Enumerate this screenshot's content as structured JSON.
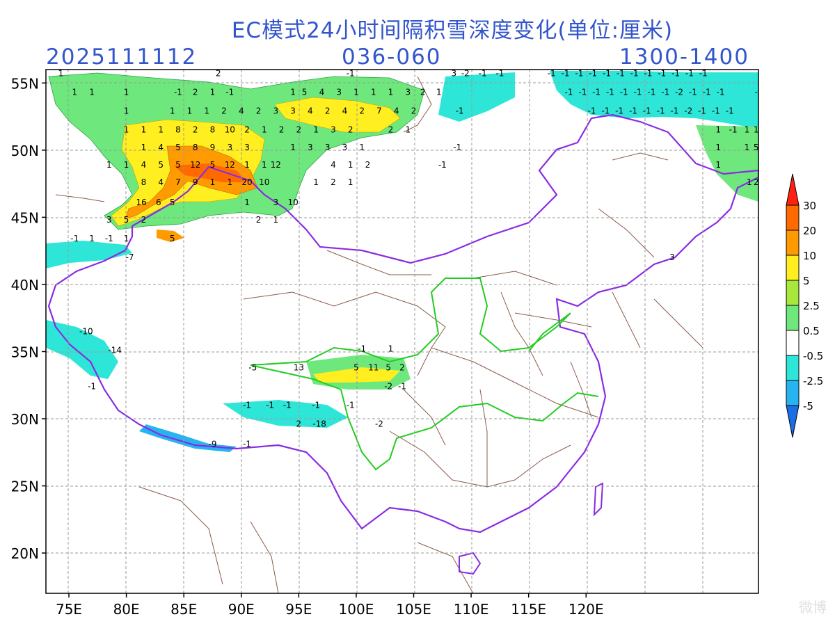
{
  "title": "EC模式24小时间隔积雪深度变化(单位:厘米)",
  "init_time": "2025111112",
  "forecast_range": "036-060",
  "time_window": "1300-1400",
  "axes": {
    "x_ticks": [
      "75E",
      "80E",
      "85E",
      "90E",
      "95E",
      "100E",
      "105E",
      "110E",
      "115E",
      "120E"
    ],
    "y_ticks": [
      "55N",
      "50N",
      "45N",
      "40N",
      "35N",
      "30N",
      "25N",
      "20N"
    ],
    "lon_range": [
      73,
      135
    ],
    "lat_range": [
      17,
      56
    ]
  },
  "colorbar": {
    "labels": [
      "30",
      "20",
      "10",
      "5",
      "2.5",
      "0.5",
      "-0.5",
      "-2.5",
      "-5"
    ],
    "colors": [
      "#ff2010",
      "#ff6a00",
      "#ff9a00",
      "#ffee20",
      "#a8e83c",
      "#6ee87c",
      "#ffffff",
      "#2ee6d8",
      "#26b4f0",
      "#1a6ee6"
    ]
  },
  "watermark": "微博",
  "snow_labels": [
    {
      "lon": 74.3,
      "lat": 55.5,
      "v": "1"
    },
    {
      "lon": 75.5,
      "lat": 54.1,
      "v": "1"
    },
    {
      "lon": 77,
      "lat": 54.1,
      "v": "1"
    },
    {
      "lon": 80,
      "lat": 54.1,
      "v": "1"
    },
    {
      "lon": 84.5,
      "lat": 54.1,
      "v": "-1"
    },
    {
      "lon": 86,
      "lat": 54.1,
      "v": "2"
    },
    {
      "lon": 87.5,
      "lat": 54.1,
      "v": "1"
    },
    {
      "lon": 89,
      "lat": 54.1,
      "v": "-1"
    },
    {
      "lon": 88,
      "lat": 55.5,
      "v": "2"
    },
    {
      "lon": 94.5,
      "lat": 54.1,
      "v": "1"
    },
    {
      "lon": 95.5,
      "lat": 54.1,
      "v": "5"
    },
    {
      "lon": 97,
      "lat": 54.1,
      "v": "4"
    },
    {
      "lon": 98.5,
      "lat": 54.1,
      "v": "3"
    },
    {
      "lon": 100,
      "lat": 54.1,
      "v": "1"
    },
    {
      "lon": 101.5,
      "lat": 54.1,
      "v": "1"
    },
    {
      "lon": 103,
      "lat": 54.1,
      "v": "1"
    },
    {
      "lon": 104.5,
      "lat": 54.1,
      "v": "3"
    },
    {
      "lon": 105.8,
      "lat": 54.1,
      "v": "2"
    },
    {
      "lon": 107.2,
      "lat": 54.1,
      "v": "1"
    },
    {
      "lon": 99.5,
      "lat": 55.5,
      "v": "-1"
    },
    {
      "lon": 80,
      "lat": 52.7,
      "v": "1"
    },
    {
      "lon": 84,
      "lat": 52.7,
      "v": "1"
    },
    {
      "lon": 85.5,
      "lat": 52.7,
      "v": "1"
    },
    {
      "lon": 87,
      "lat": 52.7,
      "v": "1"
    },
    {
      "lon": 88.5,
      "lat": 52.7,
      "v": "2"
    },
    {
      "lon": 90,
      "lat": 52.7,
      "v": "4"
    },
    {
      "lon": 91.5,
      "lat": 52.7,
      "v": "2"
    },
    {
      "lon": 93,
      "lat": 52.7,
      "v": "3"
    },
    {
      "lon": 94.5,
      "lat": 52.7,
      "v": "3"
    },
    {
      "lon": 96,
      "lat": 52.7,
      "v": "4"
    },
    {
      "lon": 97.5,
      "lat": 52.7,
      "v": "2"
    },
    {
      "lon": 99,
      "lat": 52.7,
      "v": "4"
    },
    {
      "lon": 100.5,
      "lat": 52.7,
      "v": "2"
    },
    {
      "lon": 102,
      "lat": 52.7,
      "v": "7"
    },
    {
      "lon": 103.5,
      "lat": 52.7,
      "v": "4"
    },
    {
      "lon": 105,
      "lat": 52.7,
      "v": "2"
    },
    {
      "lon": 80,
      "lat": 51.3,
      "v": "1"
    },
    {
      "lon": 81.5,
      "lat": 51.3,
      "v": "1"
    },
    {
      "lon": 83,
      "lat": 51.3,
      "v": "1"
    },
    {
      "lon": 84.5,
      "lat": 51.3,
      "v": "8"
    },
    {
      "lon": 86,
      "lat": 51.3,
      "v": "2"
    },
    {
      "lon": 87.5,
      "lat": 51.3,
      "v": "8"
    },
    {
      "lon": 89,
      "lat": 51.3,
      "v": "10"
    },
    {
      "lon": 90.5,
      "lat": 51.3,
      "v": "2"
    },
    {
      "lon": 92,
      "lat": 51.3,
      "v": "1"
    },
    {
      "lon": 93.5,
      "lat": 51.3,
      "v": "2"
    },
    {
      "lon": 95,
      "lat": 51.3,
      "v": "2"
    },
    {
      "lon": 96.5,
      "lat": 51.3,
      "v": "1"
    },
    {
      "lon": 98,
      "lat": 51.3,
      "v": "3"
    },
    {
      "lon": 99.5,
      "lat": 51.3,
      "v": "2"
    },
    {
      "lon": 103,
      "lat": 51.3,
      "v": "2"
    },
    {
      "lon": 104.5,
      "lat": 51.3,
      "v": "1"
    },
    {
      "lon": 81.5,
      "lat": 50,
      "v": "1"
    },
    {
      "lon": 83,
      "lat": 50,
      "v": "4"
    },
    {
      "lon": 84.5,
      "lat": 50,
      "v": "5"
    },
    {
      "lon": 86,
      "lat": 50,
      "v": "8"
    },
    {
      "lon": 87.5,
      "lat": 50,
      "v": "9"
    },
    {
      "lon": 89,
      "lat": 50,
      "v": "3"
    },
    {
      "lon": 90.5,
      "lat": 50,
      "v": "3"
    },
    {
      "lon": 94.5,
      "lat": 50,
      "v": "1"
    },
    {
      "lon": 96,
      "lat": 50,
      "v": "3"
    },
    {
      "lon": 97.5,
      "lat": 50,
      "v": "3"
    },
    {
      "lon": 99,
      "lat": 50,
      "v": "3"
    },
    {
      "lon": 100.5,
      "lat": 50,
      "v": "1"
    },
    {
      "lon": 78.5,
      "lat": 48.7,
      "v": "1"
    },
    {
      "lon": 80,
      "lat": 48.7,
      "v": "1"
    },
    {
      "lon": 81.5,
      "lat": 48.7,
      "v": "4"
    },
    {
      "lon": 83,
      "lat": 48.7,
      "v": "5"
    },
    {
      "lon": 84.5,
      "lat": 48.7,
      "v": "5"
    },
    {
      "lon": 86,
      "lat": 48.7,
      "v": "12"
    },
    {
      "lon": 87.5,
      "lat": 48.7,
      "v": "5"
    },
    {
      "lon": 89,
      "lat": 48.7,
      "v": "12"
    },
    {
      "lon": 90.5,
      "lat": 48.7,
      "v": "1"
    },
    {
      "lon": 92,
      "lat": 48.7,
      "v": "1"
    },
    {
      "lon": 93,
      "lat": 48.7,
      "v": "12"
    },
    {
      "lon": 98,
      "lat": 48.7,
      "v": "4"
    },
    {
      "lon": 99.5,
      "lat": 48.7,
      "v": "1"
    },
    {
      "lon": 101,
      "lat": 48.7,
      "v": "2"
    },
    {
      "lon": 81.5,
      "lat": 47.4,
      "v": "8"
    },
    {
      "lon": 83,
      "lat": 47.4,
      "v": "4"
    },
    {
      "lon": 84.5,
      "lat": 47.4,
      "v": "7"
    },
    {
      "lon": 86,
      "lat": 47.4,
      "v": "9"
    },
    {
      "lon": 87.5,
      "lat": 47.4,
      "v": "1"
    },
    {
      "lon": 89,
      "lat": 47.4,
      "v": "1"
    },
    {
      "lon": 90.5,
      "lat": 47.4,
      "v": "20"
    },
    {
      "lon": 92,
      "lat": 47.4,
      "v": "10"
    },
    {
      "lon": 96.5,
      "lat": 47.4,
      "v": "1"
    },
    {
      "lon": 98,
      "lat": 47.4,
      "v": "2"
    },
    {
      "lon": 99.5,
      "lat": 47.4,
      "v": "1"
    },
    {
      "lon": 81.3,
      "lat": 45.9,
      "v": "16"
    },
    {
      "lon": 82.8,
      "lat": 45.9,
      "v": "6"
    },
    {
      "lon": 84,
      "lat": 45.9,
      "v": "5"
    },
    {
      "lon": 90.5,
      "lat": 45.9,
      "v": "1"
    },
    {
      "lon": 93,
      "lat": 45.9,
      "v": "3"
    },
    {
      "lon": 94.5,
      "lat": 45.9,
      "v": "10"
    },
    {
      "lon": 78.5,
      "lat": 44.6,
      "v": "3"
    },
    {
      "lon": 80,
      "lat": 44.6,
      "v": "5"
    },
    {
      "lon": 81.5,
      "lat": 44.6,
      "v": "2"
    },
    {
      "lon": 91.5,
      "lat": 44.6,
      "v": "2"
    },
    {
      "lon": 93,
      "lat": 44.6,
      "v": "1"
    },
    {
      "lon": 84,
      "lat": 43.2,
      "v": "5"
    },
    {
      "lon": 75.5,
      "lat": 43.2,
      "v": "-1"
    },
    {
      "lon": 77,
      "lat": 43.2,
      "v": "1"
    },
    {
      "lon": 78.5,
      "lat": 43.2,
      "v": "-1"
    },
    {
      "lon": 80,
      "lat": 43.2,
      "v": "1"
    },
    {
      "lon": 80.3,
      "lat": 41.8,
      "v": "-7"
    },
    {
      "lon": 76.5,
      "lat": 36.3,
      "v": "-10"
    },
    {
      "lon": 79,
      "lat": 34.9,
      "v": "-14"
    },
    {
      "lon": 77,
      "lat": 32.2,
      "v": "-1"
    },
    {
      "lon": 91,
      "lat": 33.6,
      "v": "-5"
    },
    {
      "lon": 95,
      "lat": 33.6,
      "v": "13"
    },
    {
      "lon": 100.5,
      "lat": 35,
      "v": "-1"
    },
    {
      "lon": 103,
      "lat": 35,
      "v": "1"
    },
    {
      "lon": 100,
      "lat": 33.6,
      "v": "5"
    },
    {
      "lon": 101.5,
      "lat": 33.6,
      "v": "11"
    },
    {
      "lon": 102.8,
      "lat": 33.6,
      "v": "5"
    },
    {
      "lon": 104,
      "lat": 33.6,
      "v": "2"
    },
    {
      "lon": 102.8,
      "lat": 32.2,
      "v": "-2"
    },
    {
      "lon": 104,
      "lat": 32.2,
      "v": "-1"
    },
    {
      "lon": 90.5,
      "lat": 30.8,
      "v": "-1"
    },
    {
      "lon": 92.5,
      "lat": 30.8,
      "v": "-1"
    },
    {
      "lon": 94,
      "lat": 30.8,
      "v": "-1"
    },
    {
      "lon": 96.5,
      "lat": 30.8,
      "v": "-1"
    },
    {
      "lon": 95,
      "lat": 29.4,
      "v": "2"
    },
    {
      "lon": 96.8,
      "lat": 29.4,
      "v": "-18"
    },
    {
      "lon": 99.5,
      "lat": 30.8,
      "v": "-1"
    },
    {
      "lon": 102,
      "lat": 29.4,
      "v": "-2"
    },
    {
      "lon": 87.5,
      "lat": 27.9,
      "v": "-9"
    },
    {
      "lon": 90.5,
      "lat": 27.9,
      "v": "-1"
    },
    {
      "lon": 108.5,
      "lat": 55.5,
      "v": "3"
    },
    {
      "lon": 109.5,
      "lat": 55.5,
      "v": "-2"
    },
    {
      "lon": 111,
      "lat": 55.5,
      "v": "-1"
    },
    {
      "lon": 112.5,
      "lat": 55.5,
      "v": "-1"
    },
    {
      "lon": 109,
      "lat": 52.7,
      "v": "-1"
    },
    {
      "lon": 108.8,
      "lat": 50,
      "v": "-1"
    },
    {
      "lon": 107.5,
      "lat": 48.7,
      "v": "-1"
    },
    {
      "lon": 117,
      "lat": 55.5,
      "v": "-1"
    },
    {
      "lon": 118.2,
      "lat": 55.5,
      "v": "-1"
    },
    {
      "lon": 119.4,
      "lat": 55.5,
      "v": "-1"
    },
    {
      "lon": 120.6,
      "lat": 55.5,
      "v": "-1"
    },
    {
      "lon": 121.8,
      "lat": 55.5,
      "v": "-1"
    },
    {
      "lon": 123,
      "lat": 55.5,
      "v": "-1"
    },
    {
      "lon": 124.2,
      "lat": 55.5,
      "v": "-1"
    },
    {
      "lon": 125.4,
      "lat": 55.5,
      "v": "-1"
    },
    {
      "lon": 126.6,
      "lat": 55.5,
      "v": "-1"
    },
    {
      "lon": 127.8,
      "lat": 55.5,
      "v": "-1"
    },
    {
      "lon": 129,
      "lat": 55.5,
      "v": "-1"
    },
    {
      "lon": 130.2,
      "lat": 55.5,
      "v": "-1"
    },
    {
      "lon": 118.5,
      "lat": 54.1,
      "v": "-1"
    },
    {
      "lon": 119.7,
      "lat": 54.1,
      "v": "-1"
    },
    {
      "lon": 120.9,
      "lat": 54.1,
      "v": "-1"
    },
    {
      "lon": 122.1,
      "lat": 54.1,
      "v": "-1"
    },
    {
      "lon": 123.3,
      "lat": 54.1,
      "v": "-1"
    },
    {
      "lon": 124.5,
      "lat": 54.1,
      "v": "-1"
    },
    {
      "lon": 125.7,
      "lat": 54.1,
      "v": "-1"
    },
    {
      "lon": 126.9,
      "lat": 54.1,
      "v": "-1"
    },
    {
      "lon": 128.1,
      "lat": 54.1,
      "v": "-2"
    },
    {
      "lon": 129.3,
      "lat": 54.1,
      "v": "-1"
    },
    {
      "lon": 130.5,
      "lat": 54.1,
      "v": "-1"
    },
    {
      "lon": 131.7,
      "lat": 54.1,
      "v": "-1"
    },
    {
      "lon": 134.8,
      "lat": 54.1,
      "v": "-"
    },
    {
      "lon": 120.5,
      "lat": 52.7,
      "v": "-1"
    },
    {
      "lon": 121.7,
      "lat": 52.7,
      "v": "-1"
    },
    {
      "lon": 122.9,
      "lat": 52.7,
      "v": "-1"
    },
    {
      "lon": 124.1,
      "lat": 52.7,
      "v": "-1"
    },
    {
      "lon": 125.3,
      "lat": 52.7,
      "v": "-1"
    },
    {
      "lon": 126.5,
      "lat": 52.7,
      "v": "-1"
    },
    {
      "lon": 127.7,
      "lat": 52.7,
      "v": "-1"
    },
    {
      "lon": 128.9,
      "lat": 52.7,
      "v": "-2"
    },
    {
      "lon": 130.1,
      "lat": 52.7,
      "v": "-1"
    },
    {
      "lon": 131.3,
      "lat": 52.7,
      "v": "-1"
    },
    {
      "lon": 132.5,
      "lat": 52.7,
      "v": "-1"
    },
    {
      "lon": 131.5,
      "lat": 51.3,
      "v": "1"
    },
    {
      "lon": 132.8,
      "lat": 51.3,
      "v": "-1"
    },
    {
      "lon": 134,
      "lat": 51.3,
      "v": "1"
    },
    {
      "lon": 134.8,
      "lat": 51.3,
      "v": "1"
    },
    {
      "lon": 131.5,
      "lat": 50,
      "v": "1"
    },
    {
      "lon": 134,
      "lat": 50,
      "v": "1"
    },
    {
      "lon": 134.8,
      "lat": 50,
      "v": "5"
    },
    {
      "lon": 134.2,
      "lat": 47.4,
      "v": "1"
    },
    {
      "lon": 134.8,
      "lat": 47.4,
      "v": "2"
    },
    {
      "lon": 131.5,
      "lat": 48.7,
      "v": "1"
    },
    {
      "lon": 127.5,
      "lat": 41.8,
      "v": "3"
    }
  ]
}
